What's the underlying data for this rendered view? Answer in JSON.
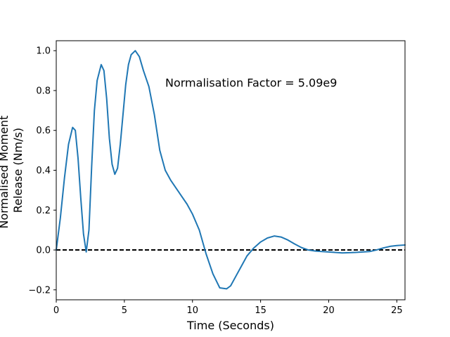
{
  "chart_data": {
    "type": "line",
    "title": "",
    "xlabel": "Time (Seconds)",
    "ylabel_lines": [
      "Normalised Moment",
      "Release (Nm/s)"
    ],
    "xlim": [
      0,
      25.6
    ],
    "ylim": [
      -0.25,
      1.05
    ],
    "xticks": [
      0,
      5,
      10,
      15,
      20,
      25
    ],
    "yticks": [
      -0.2,
      0.0,
      0.2,
      0.4,
      0.6,
      0.8,
      1.0
    ],
    "ytick_labels": [
      "−0.2",
      "0.0",
      "0.2",
      "0.4",
      "0.6",
      "0.8",
      "1.0"
    ],
    "grid": false,
    "annotation": {
      "text": "Normalisation Factor = 5.09e9",
      "x": 8.0,
      "y": 0.82
    },
    "reference_line": {
      "y": 0.0,
      "style": "dashed",
      "color": "#000000"
    },
    "series": [
      {
        "color": "#1f77b4",
        "x": [
          0,
          0.3,
          0.6,
          0.9,
          1.2,
          1.4,
          1.6,
          1.8,
          2.0,
          2.2,
          2.4,
          2.6,
          2.8,
          3.0,
          3.3,
          3.5,
          3.7,
          3.9,
          4.1,
          4.3,
          4.5,
          4.7,
          4.9,
          5.1,
          5.3,
          5.5,
          5.8,
          6.1,
          6.4,
          6.8,
          7.2,
          7.6,
          8.0,
          8.4,
          8.8,
          9.2,
          9.6,
          10.0,
          10.5,
          11.0,
          11.5,
          12.0,
          12.5,
          12.8,
          13.2,
          13.6,
          14.0,
          14.5,
          15.0,
          15.5,
          16.0,
          16.5,
          17.0,
          17.5,
          18.0,
          18.5,
          19.0,
          19.5,
          20.0,
          21.0,
          22.0,
          23.0,
          23.5,
          24.0,
          24.5,
          25.0,
          25.6
        ],
        "y": [
          0.0,
          0.16,
          0.36,
          0.53,
          0.615,
          0.6,
          0.46,
          0.26,
          0.08,
          -0.01,
          0.1,
          0.42,
          0.7,
          0.85,
          0.93,
          0.9,
          0.76,
          0.56,
          0.43,
          0.38,
          0.41,
          0.53,
          0.68,
          0.83,
          0.93,
          0.98,
          1.0,
          0.97,
          0.9,
          0.82,
          0.68,
          0.5,
          0.4,
          0.35,
          0.31,
          0.27,
          0.23,
          0.18,
          0.1,
          -0.02,
          -0.12,
          -0.19,
          -0.195,
          -0.18,
          -0.13,
          -0.08,
          -0.03,
          0.01,
          0.04,
          0.06,
          0.07,
          0.065,
          0.05,
          0.03,
          0.012,
          0.0,
          -0.005,
          -0.008,
          -0.01,
          -0.015,
          -0.012,
          -0.008,
          0.0,
          0.01,
          0.018,
          0.022,
          0.025
        ]
      }
    ]
  }
}
